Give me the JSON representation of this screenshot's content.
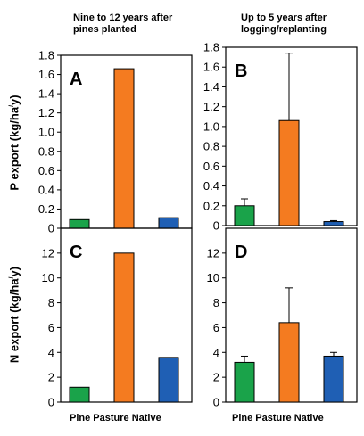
{
  "column_titles": {
    "left": [
      "Nine to 12 years after",
      "pines planted"
    ],
    "right": [
      "Up to 5 years after",
      "logging/replanting"
    ]
  },
  "ylabels": {
    "p": {
      "main": "P export (kg/ha",
      "sup": "/",
      "end": "y)"
    },
    "n": {
      "main": "N export (kg/ha",
      "sup": "/",
      "end": "y)"
    }
  },
  "xlabels": {
    "left": "Pine Pasture Native",
    "right": "Pine Pasture Native"
  },
  "colors": {
    "pine": "#1aa34a",
    "pasture": "#f47b20",
    "native": "#1f5fb4"
  },
  "chart_data": [
    {
      "panel": "A",
      "type": "bar",
      "categories": [
        "Pine",
        "Pasture",
        "Native"
      ],
      "values": [
        0.09,
        1.66,
        0.11
      ],
      "ylim": [
        0,
        1.8
      ],
      "yticks": [
        "0",
        "0.2",
        "0.4",
        "0.6",
        "0.8",
        "1.0",
        "1.2",
        "1.4",
        "1.6",
        "1.8"
      ],
      "ytick_values": [
        0,
        0.2,
        0.4,
        0.6,
        0.8,
        1.0,
        1.2,
        1.4,
        1.6,
        1.8
      ]
    },
    {
      "panel": "B",
      "type": "bar",
      "categories": [
        "Pine",
        "Pasture",
        "Native"
      ],
      "values": [
        0.2,
        1.06,
        0.04
      ],
      "errors": [
        0.07,
        0.68,
        0.01
      ],
      "ylim": [
        0,
        1.8
      ],
      "yticks": [
        "0",
        "0.2",
        "0.4",
        "0.6",
        "0.8",
        "1.0",
        "1.2",
        "1.4",
        "1.6",
        "1.8"
      ],
      "ytick_values": [
        0,
        0.2,
        0.4,
        0.6,
        0.8,
        1.0,
        1.2,
        1.4,
        1.6,
        1.8
      ]
    },
    {
      "panel": "C",
      "type": "bar",
      "categories": [
        "Pine",
        "Pasture",
        "Native"
      ],
      "values": [
        1.2,
        12.0,
        3.6
      ],
      "ylim": [
        0,
        14
      ],
      "yticks": [
        "0",
        "2",
        "4",
        "6",
        "8",
        "10",
        "12"
      ],
      "ytick_values": [
        0,
        2,
        4,
        6,
        8,
        10,
        12
      ]
    },
    {
      "panel": "D",
      "type": "bar",
      "categories": [
        "Pine",
        "Pasture",
        "Native"
      ],
      "values": [
        3.2,
        6.4,
        3.7
      ],
      "errors": [
        0.5,
        2.8,
        0.3
      ],
      "ylim": [
        0,
        14
      ],
      "yticks": [
        "0",
        "2",
        "4",
        "6",
        "8",
        "10",
        "12"
      ],
      "ytick_values": [
        0,
        2,
        4,
        6,
        8,
        10,
        12
      ]
    }
  ]
}
